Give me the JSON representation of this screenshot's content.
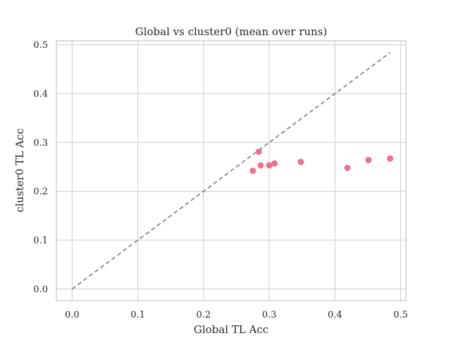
{
  "chart_data": {
    "type": "scatter",
    "title": "Global vs cluster0 (mean over runs)",
    "xlabel": "Global TL Acc",
    "ylabel": "cluster0 TL Acc",
    "xlim": [
      -0.024,
      0.508
    ],
    "ylim": [
      -0.024,
      0.508
    ],
    "xticks": [
      0.0,
      0.1,
      0.2,
      0.3,
      0.4,
      0.5
    ],
    "yticks": [
      0.0,
      0.1,
      0.2,
      0.3,
      0.4,
      0.5
    ],
    "xtick_labels": [
      "0.0",
      "0.1",
      "0.2",
      "0.3",
      "0.4",
      "0.5"
    ],
    "ytick_labels": [
      "0.0",
      "0.1",
      "0.2",
      "0.3",
      "0.4",
      "0.5"
    ],
    "grid": true,
    "reference_line": {
      "style": "dashed",
      "x": [
        0.0,
        0.484
      ],
      "y": [
        0.0,
        0.484
      ]
    },
    "point_color": "#f0708a",
    "line_color": "#7a7a7a",
    "x": [
      0.275,
      0.284,
      0.287,
      0.3,
      0.308,
      0.348,
      0.419,
      0.451,
      0.484
    ],
    "y": [
      0.242,
      0.281,
      0.253,
      0.253,
      0.257,
      0.26,
      0.248,
      0.264,
      0.267
    ]
  }
}
